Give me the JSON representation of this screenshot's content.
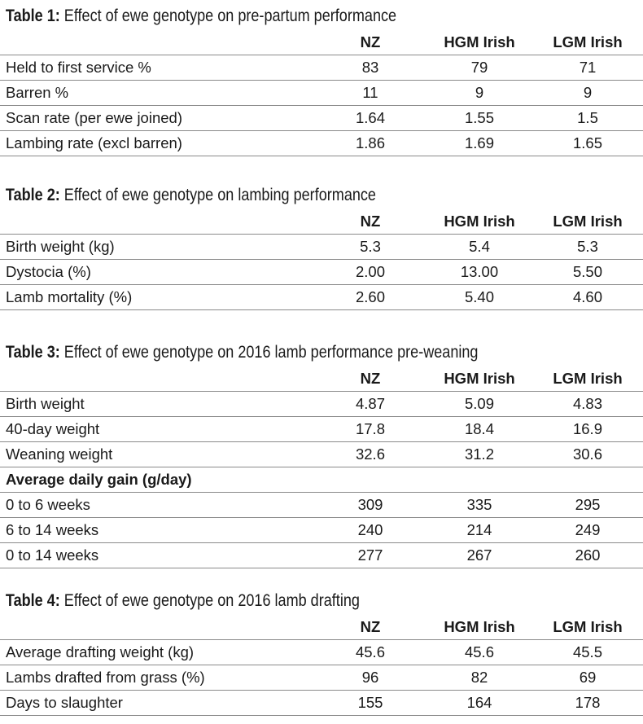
{
  "columns": [
    "NZ",
    "HGM Irish",
    "LGM Irish"
  ],
  "tables": [
    {
      "label": "Table 1:",
      "title": " Effect of ewe genotype on pre-partum performance",
      "rows": [
        {
          "label": "Held to first service %",
          "values": [
            "83",
            "79",
            "71"
          ]
        },
        {
          "label": "Barren %",
          "values": [
            "11",
            "9",
            "9"
          ]
        },
        {
          "label": "Scan rate (per ewe joined)",
          "values": [
            "1.64",
            "1.55",
            "1.5"
          ]
        },
        {
          "label": "Lambing rate (excl barren)",
          "values": [
            "1.86",
            "1.69",
            "1.65"
          ]
        }
      ]
    },
    {
      "label": "Table 2:",
      "title": " Effect of ewe genotype on lambing performance",
      "rows": [
        {
          "label": "Birth weight (kg)",
          "values": [
            "5.3",
            "5.4",
            "5.3"
          ]
        },
        {
          "label": "Dystocia (%)",
          "values": [
            "2.00",
            "13.00",
            "5.50"
          ]
        },
        {
          "label": "Lamb mortality (%)",
          "values": [
            "2.60",
            "5.40",
            "4.60"
          ]
        }
      ]
    },
    {
      "label": "Table 3:",
      "title": " Effect of ewe genotype on 2016 lamb performance pre-weaning",
      "rows": [
        {
          "label": "Birth weight",
          "values": [
            "4.87",
            "5.09",
            "4.83"
          ]
        },
        {
          "label": "40-day weight",
          "values": [
            "17.8",
            "18.4",
            "16.9"
          ]
        },
        {
          "label": "Weaning weight",
          "values": [
            "32.6",
            "31.2",
            "30.6"
          ]
        },
        {
          "label": "Average daily gain (g/day)",
          "subheader": true,
          "values": []
        },
        {
          "label": "0 to 6 weeks",
          "values": [
            "309",
            "335",
            "295"
          ]
        },
        {
          "label": "6 to 14 weeks",
          "values": [
            "240",
            "214",
            "249"
          ]
        },
        {
          "label": "0 to 14 weeks",
          "values": [
            "277",
            "267",
            "260"
          ]
        }
      ]
    },
    {
      "label": "Table 4:",
      "title": " Effect of ewe genotype on 2016 lamb drafting",
      "rows": [
        {
          "label": "Average drafting weight (kg)",
          "values": [
            "45.6",
            "45.6",
            "45.5"
          ]
        },
        {
          "label": "Lambs drafted from grass (%)",
          "values": [
            "96",
            "82",
            "69"
          ]
        },
        {
          "label": "Days to slaughter",
          "values": [
            "155",
            "164",
            "178"
          ]
        }
      ]
    }
  ]
}
